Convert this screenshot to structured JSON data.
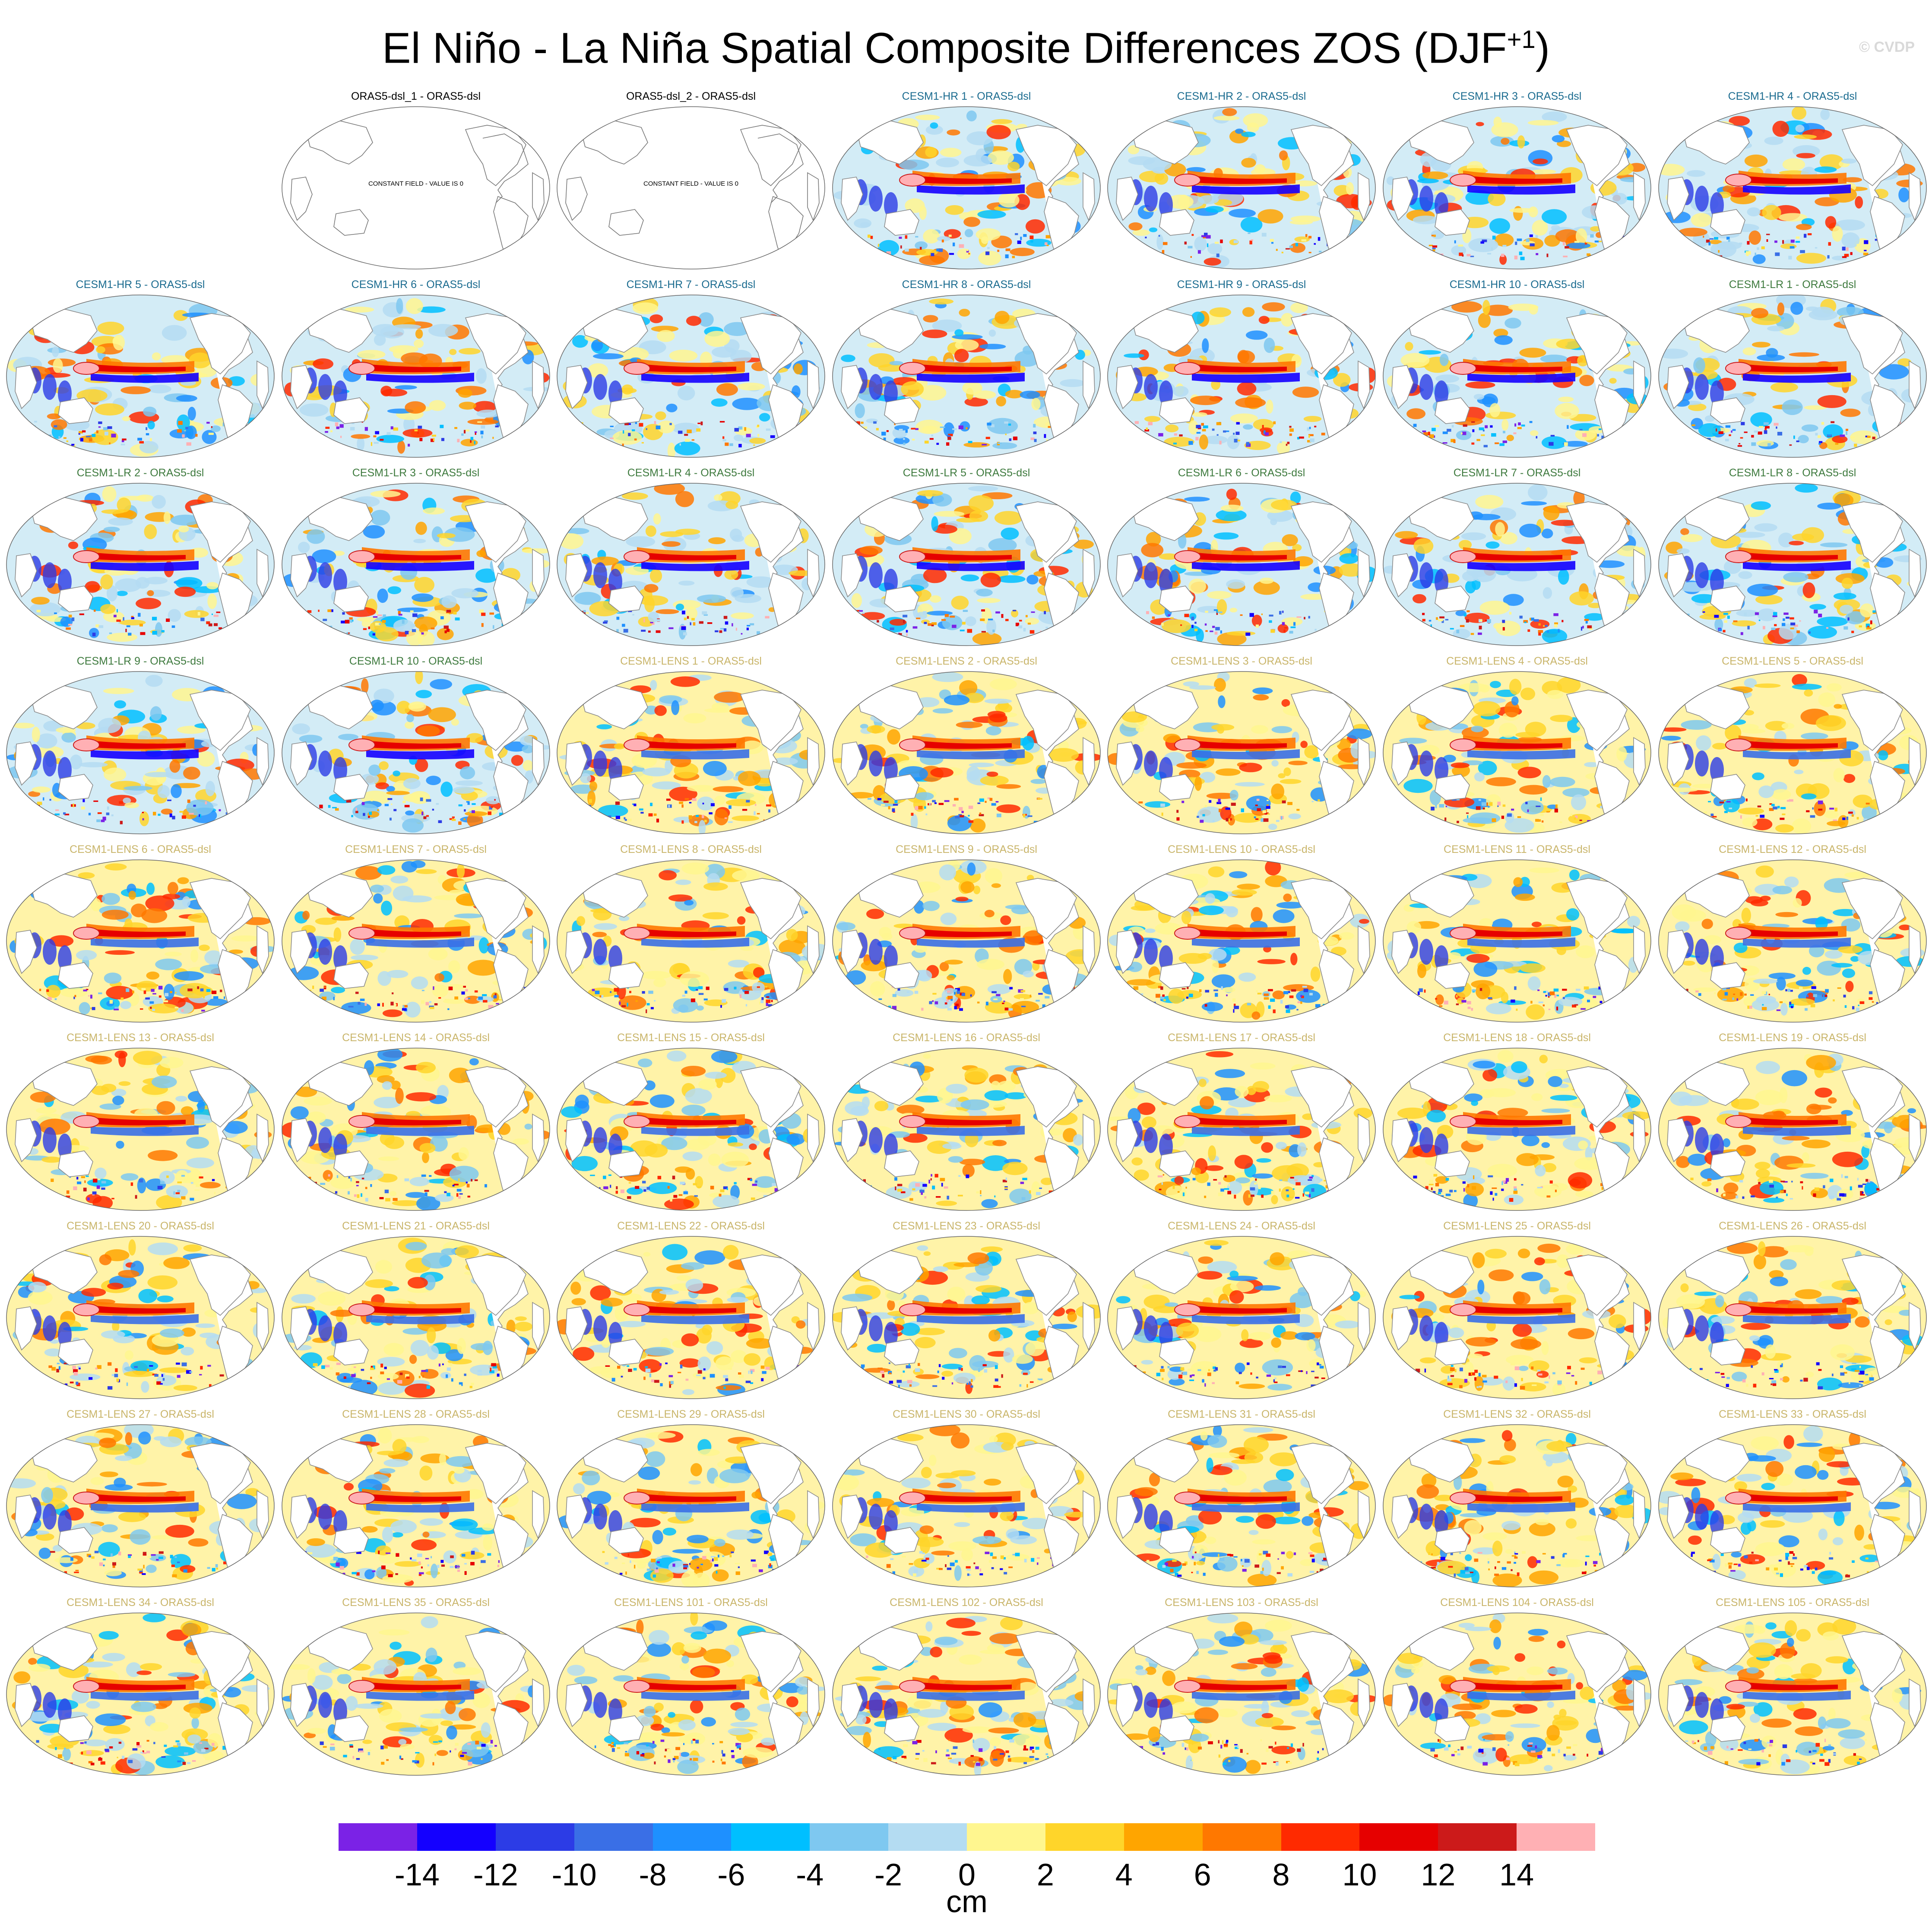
{
  "title": "El Niño - La Niña Spatial Composite Differences ZOS (DJF",
  "title_superscript": "+1",
  "title_end": ")",
  "credit": "© CVDP",
  "constant_field_label": "CONSTANT FIELD - VALUE IS 0",
  "panel_title_colors": {
    "obs": "#000000",
    "hr": "#1a6b8f",
    "lr": "#3e7a3e",
    "lens": "#c9b56a"
  },
  "panels": [
    {
      "title": "",
      "group": "empty"
    },
    {
      "title": "ORAS5-dsl_1 - ORAS5-dsl",
      "group": "obs",
      "constant": true
    },
    {
      "title": "ORAS5-dsl_2 - ORAS5-dsl",
      "group": "obs",
      "constant": true
    },
    {
      "title": "CESM1-HR 1 - ORAS5-dsl",
      "group": "hr"
    },
    {
      "title": "CESM1-HR 2 - ORAS5-dsl",
      "group": "hr"
    },
    {
      "title": "CESM1-HR 3 - ORAS5-dsl",
      "group": "hr"
    },
    {
      "title": "CESM1-HR 4 - ORAS5-dsl",
      "group": "hr"
    },
    {
      "title": "CESM1-HR 5 - ORAS5-dsl",
      "group": "hr"
    },
    {
      "title": "CESM1-HR 6 - ORAS5-dsl",
      "group": "hr"
    },
    {
      "title": "CESM1-HR 7 - ORAS5-dsl",
      "group": "hr"
    },
    {
      "title": "CESM1-HR 8 - ORAS5-dsl",
      "group": "hr"
    },
    {
      "title": "CESM1-HR 9 - ORAS5-dsl",
      "group": "hr"
    },
    {
      "title": "CESM1-HR 10 - ORAS5-dsl",
      "group": "hr"
    },
    {
      "title": "CESM1-LR 1 - ORAS5-dsl",
      "group": "lr"
    },
    {
      "title": "CESM1-LR 2 - ORAS5-dsl",
      "group": "lr"
    },
    {
      "title": "CESM1-LR 3 - ORAS5-dsl",
      "group": "lr"
    },
    {
      "title": "CESM1-LR 4 - ORAS5-dsl",
      "group": "lr"
    },
    {
      "title": "CESM1-LR 5 - ORAS5-dsl",
      "group": "lr"
    },
    {
      "title": "CESM1-LR 6 - ORAS5-dsl",
      "group": "lr"
    },
    {
      "title": "CESM1-LR 7 - ORAS5-dsl",
      "group": "lr"
    },
    {
      "title": "CESM1-LR 8 - ORAS5-dsl",
      "group": "lr"
    },
    {
      "title": "CESM1-LR 9 - ORAS5-dsl",
      "group": "lr"
    },
    {
      "title": "CESM1-LR 10 - ORAS5-dsl",
      "group": "lr"
    },
    {
      "title": "CESM1-LENS 1 - ORAS5-dsl",
      "group": "lens"
    },
    {
      "title": "CESM1-LENS 2 - ORAS5-dsl",
      "group": "lens"
    },
    {
      "title": "CESM1-LENS 3 - ORAS5-dsl",
      "group": "lens"
    },
    {
      "title": "CESM1-LENS 4 - ORAS5-dsl",
      "group": "lens"
    },
    {
      "title": "CESM1-LENS 5 - ORAS5-dsl",
      "group": "lens"
    },
    {
      "title": "CESM1-LENS 6 - ORAS5-dsl",
      "group": "lens"
    },
    {
      "title": "CESM1-LENS 7 - ORAS5-dsl",
      "group": "lens"
    },
    {
      "title": "CESM1-LENS 8 - ORAS5-dsl",
      "group": "lens"
    },
    {
      "title": "CESM1-LENS 9 - ORAS5-dsl",
      "group": "lens"
    },
    {
      "title": "CESM1-LENS 10 - ORAS5-dsl",
      "group": "lens"
    },
    {
      "title": "CESM1-LENS 11 - ORAS5-dsl",
      "group": "lens"
    },
    {
      "title": "CESM1-LENS 12 - ORAS5-dsl",
      "group": "lens"
    },
    {
      "title": "CESM1-LENS 13 - ORAS5-dsl",
      "group": "lens"
    },
    {
      "title": "CESM1-LENS 14 - ORAS5-dsl",
      "group": "lens"
    },
    {
      "title": "CESM1-LENS 15 - ORAS5-dsl",
      "group": "lens"
    },
    {
      "title": "CESM1-LENS 16 - ORAS5-dsl",
      "group": "lens"
    },
    {
      "title": "CESM1-LENS 17 - ORAS5-dsl",
      "group": "lens"
    },
    {
      "title": "CESM1-LENS 18 - ORAS5-dsl",
      "group": "lens"
    },
    {
      "title": "CESM1-LENS 19 - ORAS5-dsl",
      "group": "lens"
    },
    {
      "title": "CESM1-LENS 20 - ORAS5-dsl",
      "group": "lens"
    },
    {
      "title": "CESM1-LENS 21 - ORAS5-dsl",
      "group": "lens"
    },
    {
      "title": "CESM1-LENS 22 - ORAS5-dsl",
      "group": "lens"
    },
    {
      "title": "CESM1-LENS 23 - ORAS5-dsl",
      "group": "lens"
    },
    {
      "title": "CESM1-LENS 24 - ORAS5-dsl",
      "group": "lens"
    },
    {
      "title": "CESM1-LENS 25 - ORAS5-dsl",
      "group": "lens"
    },
    {
      "title": "CESM1-LENS 26 - ORAS5-dsl",
      "group": "lens"
    },
    {
      "title": "CESM1-LENS 27 - ORAS5-dsl",
      "group": "lens"
    },
    {
      "title": "CESM1-LENS 28 - ORAS5-dsl",
      "group": "lens"
    },
    {
      "title": "CESM1-LENS 29 - ORAS5-dsl",
      "group": "lens"
    },
    {
      "title": "CESM1-LENS 30 - ORAS5-dsl",
      "group": "lens"
    },
    {
      "title": "CESM1-LENS 31 - ORAS5-dsl",
      "group": "lens"
    },
    {
      "title": "CESM1-LENS 32 - ORAS5-dsl",
      "group": "lens"
    },
    {
      "title": "CESM1-LENS 33 - ORAS5-dsl",
      "group": "lens"
    },
    {
      "title": "CESM1-LENS 34 - ORAS5-dsl",
      "group": "lens"
    },
    {
      "title": "CESM1-LENS 35 - ORAS5-dsl",
      "group": "lens"
    },
    {
      "title": "CESM1-LENS 101 - ORAS5-dsl",
      "group": "lens"
    },
    {
      "title": "CESM1-LENS 102 - ORAS5-dsl",
      "group": "lens"
    },
    {
      "title": "CESM1-LENS 103 - ORAS5-dsl",
      "group": "lens"
    },
    {
      "title": "CESM1-LENS 104 - ORAS5-dsl",
      "group": "lens"
    },
    {
      "title": "CESM1-LENS 105 - ORAS5-dsl",
      "group": "lens"
    }
  ],
  "colorbar": {
    "units": "cm",
    "labels": [
      "-14",
      "-12",
      "-10",
      "-8",
      "-6",
      "-4",
      "-2",
      "0",
      "2",
      "4",
      "6",
      "8",
      "10",
      "12",
      "14"
    ],
    "colors": [
      "#7b22e6",
      "#1400ff",
      "#2c3ce6",
      "#3a6fe6",
      "#1e90ff",
      "#00bfff",
      "#7ec8f0",
      "#b4dcf2",
      "#fff68f",
      "#ffd52a",
      "#ffa500",
      "#ff7800",
      "#ff2a00",
      "#e60000",
      "#cc1a1a",
      "#ffb0b4"
    ]
  }
}
